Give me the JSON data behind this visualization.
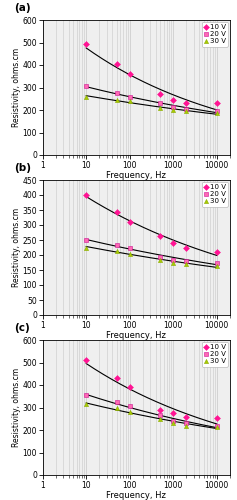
{
  "panels": [
    {
      "label": "(a)",
      "ylim": [
        0,
        600
      ],
      "yticks": [
        0,
        100,
        200,
        300,
        400,
        500,
        600
      ],
      "data": {
        "10V": {
          "x": [
            10,
            50,
            100,
            500,
            1000,
            2000,
            10000
          ],
          "y": [
            495,
            405,
            360,
            270,
            245,
            230,
            230
          ]
        },
        "20V": {
          "x": [
            10,
            50,
            100,
            500,
            1000,
            2000,
            10000
          ],
          "y": [
            305,
            275,
            260,
            230,
            215,
            205,
            195
          ]
        },
        "30V": {
          "x": [
            10,
            50,
            100,
            500,
            1000,
            2000,
            10000
          ],
          "y": [
            260,
            245,
            240,
            210,
            200,
            195,
            185
          ]
        }
      }
    },
    {
      "label": "(b)",
      "ylim": [
        0,
        450
      ],
      "yticks": [
        0,
        50,
        100,
        150,
        200,
        250,
        300,
        350,
        400,
        450
      ],
      "data": {
        "10V": {
          "x": [
            10,
            50,
            100,
            500,
            1000,
            2000,
            10000
          ],
          "y": [
            400,
            345,
            310,
            265,
            240,
            225,
            210
          ]
        },
        "20V": {
          "x": [
            10,
            50,
            100,
            500,
            1000,
            2000,
            10000
          ],
          "y": [
            250,
            235,
            225,
            195,
            185,
            180,
            175
          ]
        },
        "30V": {
          "x": [
            10,
            50,
            100,
            500,
            1000,
            2000,
            10000
          ],
          "y": [
            225,
            215,
            205,
            185,
            175,
            170,
            162
          ]
        }
      }
    },
    {
      "label": "(c)",
      "ylim": [
        0,
        600
      ],
      "yticks": [
        0,
        100,
        200,
        300,
        400,
        500,
        600
      ],
      "data": {
        "10V": {
          "x": [
            10,
            50,
            100,
            500,
            1000,
            2000,
            10000
          ],
          "y": [
            510,
            430,
            390,
            290,
            275,
            260,
            255
          ]
        },
        "20V": {
          "x": [
            10,
            50,
            100,
            500,
            1000,
            2000,
            10000
          ],
          "y": [
            355,
            325,
            305,
            265,
            240,
            230,
            220
          ]
        },
        "30V": {
          "x": [
            10,
            50,
            100,
            500,
            1000,
            2000,
            10000
          ],
          "y": [
            315,
            300,
            280,
            250,
            230,
            220,
            215
          ]
        }
      }
    }
  ],
  "volt_keys": [
    "10V",
    "20V",
    "30V"
  ],
  "markers": {
    "10V": "D",
    "20V": "s",
    "30V": "^"
  },
  "marker_colors": {
    "10V": "#FF1493",
    "20V": "#FF69B4",
    "30V": "#AACC00"
  },
  "marker_edge_colors": {
    "10V": "#FF1493",
    "20V": "#CC1493",
    "30V": "#88AA00"
  },
  "legend_labels": {
    "10V": "10 V",
    "20V": "20 V",
    "30V": "30 V"
  },
  "xlabel": "Frequency, Hz",
  "ylabel": "Resistivity, ohms.cm",
  "bg_color": "#EFEFEF",
  "grid_color": "#C8C8C8",
  "line_color": "black",
  "line_width": 0.8,
  "marker_size": 3.0
}
